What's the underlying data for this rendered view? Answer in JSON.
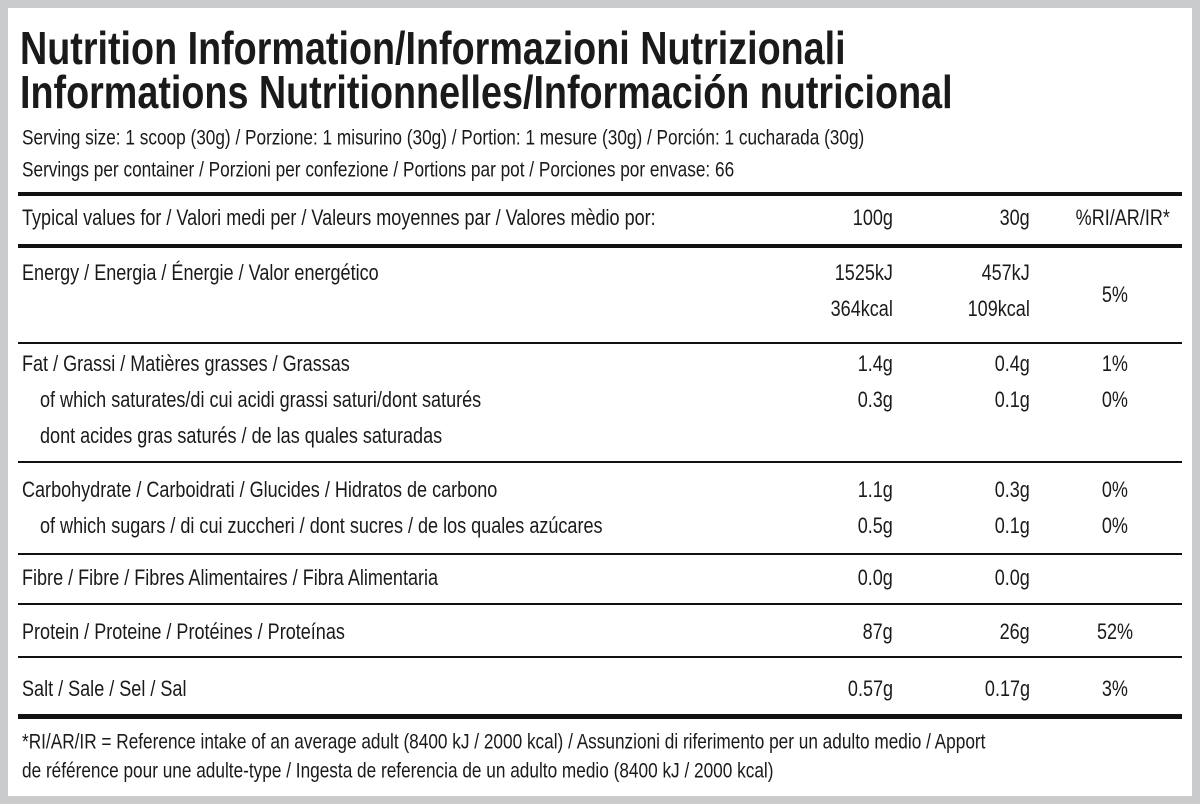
{
  "header": {
    "title_lines": [
      "Nutrition Information/Informazioni Nutrizionali",
      "Informations Nutritionnelles/Información nutricional"
    ],
    "serving_size": "Serving size: 1 scoop (30g) / Porzione: 1 misurino (30g) / Portion: 1 mesure (30g) / Porción: 1 cucharada (30g)",
    "servings_per_container": "Servings per container / Porzioni per confezione / Portions par pot / Porciones por envase: 66"
  },
  "table": {
    "columns": [
      "Typical values for / Valori medi per / Valeurs moyennes par / Valores mèdio por:",
      "100g",
      "30g",
      "%RI/AR/IR*"
    ],
    "groups": [
      {
        "rows": [
          {
            "label": "Energy / Energia / Énergie / Valor energético",
            "per_100g": [
              "1525kJ",
              "364kcal"
            ],
            "per_30g": [
              "457kJ",
              "109kcal"
            ],
            "ri": "5%"
          }
        ]
      },
      {
        "rows": [
          {
            "label": "Fat / Grassi / Matières grasses / Grassas",
            "per_100g": "1.4g",
            "per_30g": "0.4g",
            "ri": "1%"
          },
          {
            "label": [
              "of which saturates/di cui acidi grassi saturi/dont saturés",
              "dont acides gras saturés / de las quales saturadas"
            ],
            "per_100g": "0.3g",
            "per_30g": "0.1g",
            "ri": "0%"
          }
        ]
      },
      {
        "rows": [
          {
            "label": "Carbohydrate / Carboidrati / Glucides / Hidratos de carbono",
            "per_100g": "1.1g",
            "per_30g": "0.3g",
            "ri": "0%"
          },
          {
            "label": "of which sugars / di cui zuccheri / dont sucres / de los quales azúcares",
            "per_100g": "0.5g",
            "per_30g": "0.1g",
            "ri": "0%"
          }
        ]
      },
      {
        "rows": [
          {
            "label": "Fibre / Fibre / Fibres Alimentaires / Fibra Alimentaria",
            "per_100g": "0.0g",
            "per_30g": "0.0g"
          }
        ]
      },
      {
        "rows": [
          {
            "label": "Protein / Proteine / Protéines / Proteínas",
            "per_100g": "87g",
            "per_30g": "26g",
            "ri": "52%"
          }
        ]
      },
      {
        "rows": [
          {
            "label": "Salt / Sale / Sel / Sal",
            "per_100g": "0.57g",
            "per_30g": "0.17g",
            "ri": "3%"
          }
        ]
      }
    ]
  },
  "footnote_lines": [
    "*RI/AR/IR = Reference intake of an average adult (8400 kJ / 2000 kcal)  / Assunzioni di riferimento per un adulto medio / Apport",
    "de référence pour une adulte-type / Ingesta de referencia de un adulto medio (8400 kJ / 2000 kcal)"
  ]
}
